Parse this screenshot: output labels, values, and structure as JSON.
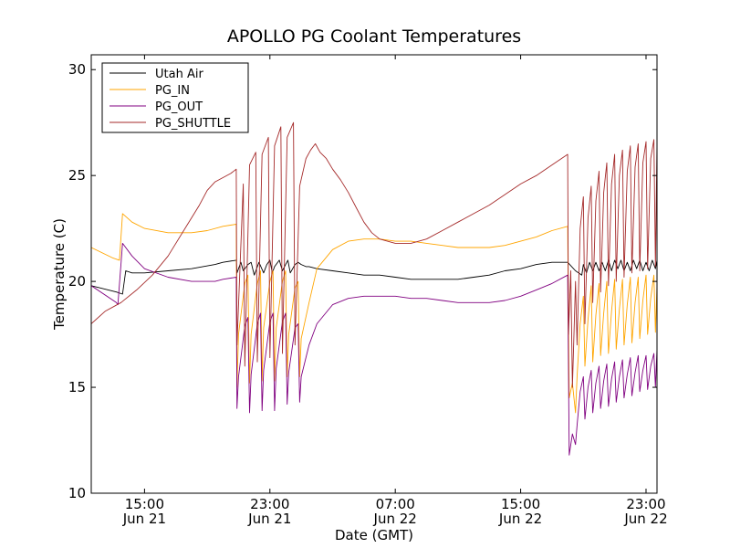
{
  "chart_data": {
    "type": "line",
    "title": "APOLLO PG Coolant Temperatures",
    "xlabel": "Date (GMT)",
    "ylabel": "Temperature (C)",
    "xlim": [
      11.6,
      47.7
    ],
    "ylim": [
      10,
      30.7
    ],
    "yticks": [
      10,
      15,
      20,
      25,
      30
    ],
    "xticks": [
      {
        "x": 15,
        "time": "15:00",
        "date": "Jun 21"
      },
      {
        "x": 23,
        "time": "23:00",
        "date": "Jun 21"
      },
      {
        "x": 31,
        "time": "07:00",
        "date": "Jun 22"
      },
      {
        "x": 39,
        "time": "15:00",
        "date": "Jun 22"
      },
      {
        "x": 47,
        "time": "23:00",
        "date": "Jun 22"
      }
    ],
    "legend": {
      "location": "top-left",
      "entries": [
        {
          "label": "Utah Air",
          "color": "#000000"
        },
        {
          "label": "PG_IN",
          "color": "#ffa500"
        },
        {
          "label": "PG_OUT",
          "color": "#800080"
        },
        {
          "label": "PG_SHUTTLE",
          "color": "#a52a2a"
        }
      ]
    },
    "series": [
      {
        "name": "Utah Air",
        "color": "#000000",
        "x": [
          11.6,
          13.2,
          13.6,
          13.8,
          14.2,
          15.0,
          16.5,
          18.0,
          19.5,
          20.0,
          20.85,
          20.9,
          21.0,
          21.15,
          21.3,
          21.6,
          21.8,
          22.0,
          22.15,
          22.3,
          22.6,
          22.8,
          23.0,
          23.15,
          23.3,
          23.6,
          23.8,
          24.0,
          24.15,
          24.3,
          24.6,
          24.8,
          25.0,
          25.3,
          25.5,
          26.0,
          27.0,
          28.0,
          29.0,
          30.0,
          31.0,
          32.0,
          33.0,
          34.0,
          35.0,
          36.0,
          37.0,
          38.0,
          39.0,
          40.0,
          41.0,
          42.0,
          42.5,
          42.9,
          43.0,
          43.2,
          43.4,
          43.6,
          43.8,
          44.0,
          44.2,
          44.4,
          44.6,
          44.8,
          45.0,
          45.2,
          45.4,
          45.6,
          45.8,
          46.0,
          46.2,
          46.4,
          46.6,
          46.8,
          47.0,
          47.2,
          47.4,
          47.6,
          47.7
        ],
        "y": [
          19.8,
          19.5,
          19.4,
          20.5,
          20.4,
          20.4,
          20.5,
          20.6,
          20.8,
          20.9,
          21.0,
          20.4,
          20.6,
          20.9,
          20.5,
          20.8,
          20.9,
          20.3,
          20.6,
          20.9,
          20.4,
          20.8,
          21.0,
          20.4,
          20.7,
          21.0,
          20.5,
          20.8,
          21.0,
          20.4,
          20.8,
          20.9,
          20.8,
          20.7,
          20.7,
          20.6,
          20.5,
          20.4,
          20.3,
          20.3,
          20.2,
          20.1,
          20.1,
          20.1,
          20.1,
          20.2,
          20.3,
          20.5,
          20.6,
          20.8,
          20.9,
          20.9,
          20.5,
          20.3,
          20.8,
          20.4,
          20.9,
          20.5,
          20.9,
          20.5,
          20.9,
          20.5,
          21.0,
          20.5,
          21.0,
          20.6,
          21.0,
          20.5,
          20.9,
          20.5,
          21.0,
          20.6,
          21.0,
          20.5,
          20.9,
          20.5,
          21.0,
          20.6,
          21.0
        ]
      },
      {
        "name": "PG_IN",
        "color": "#ffa500",
        "x": [
          11.6,
          13.0,
          13.4,
          13.6,
          14.2,
          15.0,
          16.5,
          18.0,
          19.0,
          20.0,
          20.85,
          20.9,
          21.0,
          21.4,
          21.6,
          21.7,
          21.8,
          22.2,
          22.4,
          22.5,
          22.6,
          23.0,
          23.2,
          23.3,
          23.4,
          23.8,
          24.0,
          24.1,
          24.2,
          24.6,
          24.8,
          24.9,
          25.0,
          25.5,
          26.0,
          27.0,
          28.0,
          29.0,
          30.0,
          31.0,
          32.0,
          33.0,
          34.0,
          35.0,
          36.0,
          37.0,
          38.0,
          39.0,
          40.0,
          41.0,
          42.0,
          42.1,
          42.3,
          42.5,
          42.6,
          42.8,
          43.0,
          43.1,
          43.3,
          43.5,
          43.6,
          43.8,
          44.0,
          44.1,
          44.3,
          44.5,
          44.6,
          44.8,
          45.0,
          45.1,
          45.3,
          45.5,
          45.6,
          45.8,
          46.0,
          46.1,
          46.3,
          46.5,
          46.6,
          46.8,
          47.0,
          47.1,
          47.3,
          47.5,
          47.6,
          47.7
        ],
        "y": [
          21.6,
          21.1,
          21.0,
          23.2,
          22.8,
          22.5,
          22.3,
          22.3,
          22.4,
          22.6,
          22.7,
          15.0,
          17.5,
          19.9,
          20.3,
          15.2,
          17.5,
          19.9,
          20.5,
          15.3,
          17.8,
          20.0,
          20.5,
          15.3,
          17.8,
          20.0,
          20.5,
          15.5,
          17.5,
          19.7,
          20.0,
          15.5,
          17.3,
          19.0,
          20.6,
          21.5,
          21.9,
          22.0,
          22.0,
          21.9,
          21.9,
          21.8,
          21.7,
          21.6,
          21.6,
          21.6,
          21.7,
          21.9,
          22.1,
          22.4,
          22.6,
          14.5,
          15.2,
          13.8,
          15.5,
          18.0,
          19.3,
          16.0,
          18.2,
          19.8,
          16.2,
          18.4,
          19.9,
          16.5,
          18.5,
          20.0,
          16.6,
          18.6,
          20.1,
          16.8,
          18.7,
          20.1,
          17.0,
          18.9,
          20.2,
          17.1,
          19.0,
          20.2,
          17.3,
          19.1,
          20.3,
          17.5,
          19.2,
          20.3,
          17.6,
          19.8
        ]
      },
      {
        "name": "PG_OUT",
        "color": "#800080",
        "x": [
          11.6,
          13.2,
          13.3,
          13.6,
          14.2,
          15.0,
          16.5,
          18.0,
          19.5,
          20.0,
          20.85,
          20.9,
          21.0,
          21.4,
          21.6,
          21.7,
          21.8,
          22.2,
          22.4,
          22.5,
          22.6,
          23.0,
          23.2,
          23.3,
          23.4,
          23.8,
          24.0,
          24.1,
          24.2,
          24.6,
          24.8,
          24.9,
          25.0,
          25.5,
          26.0,
          27.0,
          28.0,
          29.0,
          30.0,
          31.0,
          32.0,
          33.0,
          34.0,
          35.0,
          36.0,
          37.0,
          38.0,
          39.0,
          40.0,
          41.0,
          42.0,
          42.1,
          42.3,
          42.5,
          42.6,
          42.8,
          43.0,
          43.1,
          43.3,
          43.5,
          43.6,
          43.8,
          44.0,
          44.1,
          44.3,
          44.5,
          44.6,
          44.8,
          45.0,
          45.1,
          45.3,
          45.5,
          45.6,
          45.8,
          46.0,
          46.1,
          46.3,
          46.5,
          46.6,
          46.8,
          47.0,
          47.1,
          47.3,
          47.5,
          47.6,
          47.7
        ],
        "y": [
          19.8,
          19.0,
          18.9,
          21.8,
          21.2,
          20.6,
          20.2,
          20.0,
          20.0,
          20.1,
          20.2,
          14.0,
          15.5,
          17.9,
          18.3,
          13.8,
          15.6,
          18.0,
          18.5,
          13.9,
          15.8,
          18.1,
          18.5,
          13.9,
          15.9,
          18.1,
          18.5,
          14.2,
          15.7,
          17.8,
          18.0,
          14.3,
          15.5,
          17.0,
          18.0,
          18.9,
          19.2,
          19.3,
          19.3,
          19.3,
          19.2,
          19.2,
          19.1,
          19.0,
          19.0,
          19.0,
          19.1,
          19.3,
          19.6,
          19.9,
          20.3,
          11.8,
          12.8,
          12.3,
          13.2,
          14.8,
          15.5,
          13.5,
          15.0,
          15.8,
          13.8,
          15.2,
          16.0,
          14.0,
          15.3,
          16.1,
          14.1,
          15.4,
          16.2,
          14.3,
          15.5,
          16.3,
          14.5,
          15.6,
          16.4,
          14.6,
          15.7,
          16.5,
          14.8,
          15.8,
          16.5,
          14.9,
          16.0,
          16.6,
          15.0,
          16.8
        ]
      },
      {
        "name": "PG_SHUTTLE",
        "color": "#a52a2a",
        "x": [
          11.6,
          12.5,
          13.5,
          14.5,
          15.5,
          16.5,
          17.5,
          18.5,
          19.0,
          19.5,
          20.0,
          20.5,
          20.85,
          20.9,
          21.3,
          21.4,
          21.7,
          22.1,
          22.2,
          22.5,
          22.9,
          23.0,
          23.3,
          23.7,
          23.8,
          24.1,
          24.5,
          24.6,
          24.9,
          25.3,
          25.6,
          25.9,
          26.2,
          26.6,
          27.0,
          27.5,
          28.0,
          28.5,
          29.0,
          29.5,
          30.0,
          31.0,
          32.0,
          33.0,
          34.0,
          35.0,
          36.0,
          37.0,
          38.0,
          39.0,
          40.0,
          41.0,
          42.0,
          42.05,
          42.2,
          42.3,
          42.5,
          42.6,
          42.8,
          43.0,
          43.1,
          43.3,
          43.5,
          43.6,
          43.8,
          44.0,
          44.1,
          44.3,
          44.5,
          44.6,
          44.8,
          45.0,
          45.1,
          45.3,
          45.5,
          45.6,
          45.8,
          46.0,
          46.1,
          46.3,
          46.5,
          46.6,
          46.8,
          47.0,
          47.1,
          47.3,
          47.5,
          47.6,
          47.7
        ],
        "y": [
          18.0,
          18.6,
          19.0,
          19.6,
          20.3,
          21.2,
          22.4,
          23.6,
          24.3,
          24.7,
          24.9,
          25.1,
          25.3,
          17.0,
          24.6,
          16.0,
          25.5,
          26.1,
          16.2,
          26.0,
          26.8,
          16.4,
          26.4,
          27.3,
          16.6,
          26.8,
          27.5,
          17.0,
          24.5,
          25.8,
          26.2,
          26.5,
          26.1,
          25.8,
          25.3,
          24.8,
          24.2,
          23.5,
          22.8,
          22.3,
          22.0,
          21.8,
          21.8,
          22.0,
          22.4,
          22.8,
          23.2,
          23.6,
          24.1,
          24.6,
          25.0,
          25.5,
          26.0,
          17.5,
          20.5,
          15.0,
          20.0,
          17.0,
          22.5,
          24.0,
          18.0,
          23.0,
          24.5,
          19.0,
          23.8,
          25.2,
          19.5,
          24.2,
          25.6,
          19.8,
          24.6,
          26.0,
          20.0,
          25.0,
          26.2,
          20.2,
          25.2,
          26.4,
          20.4,
          25.4,
          26.5,
          20.5,
          25.6,
          26.6,
          20.6,
          25.8,
          26.7,
          20.7,
          26.5
        ]
      }
    ]
  }
}
